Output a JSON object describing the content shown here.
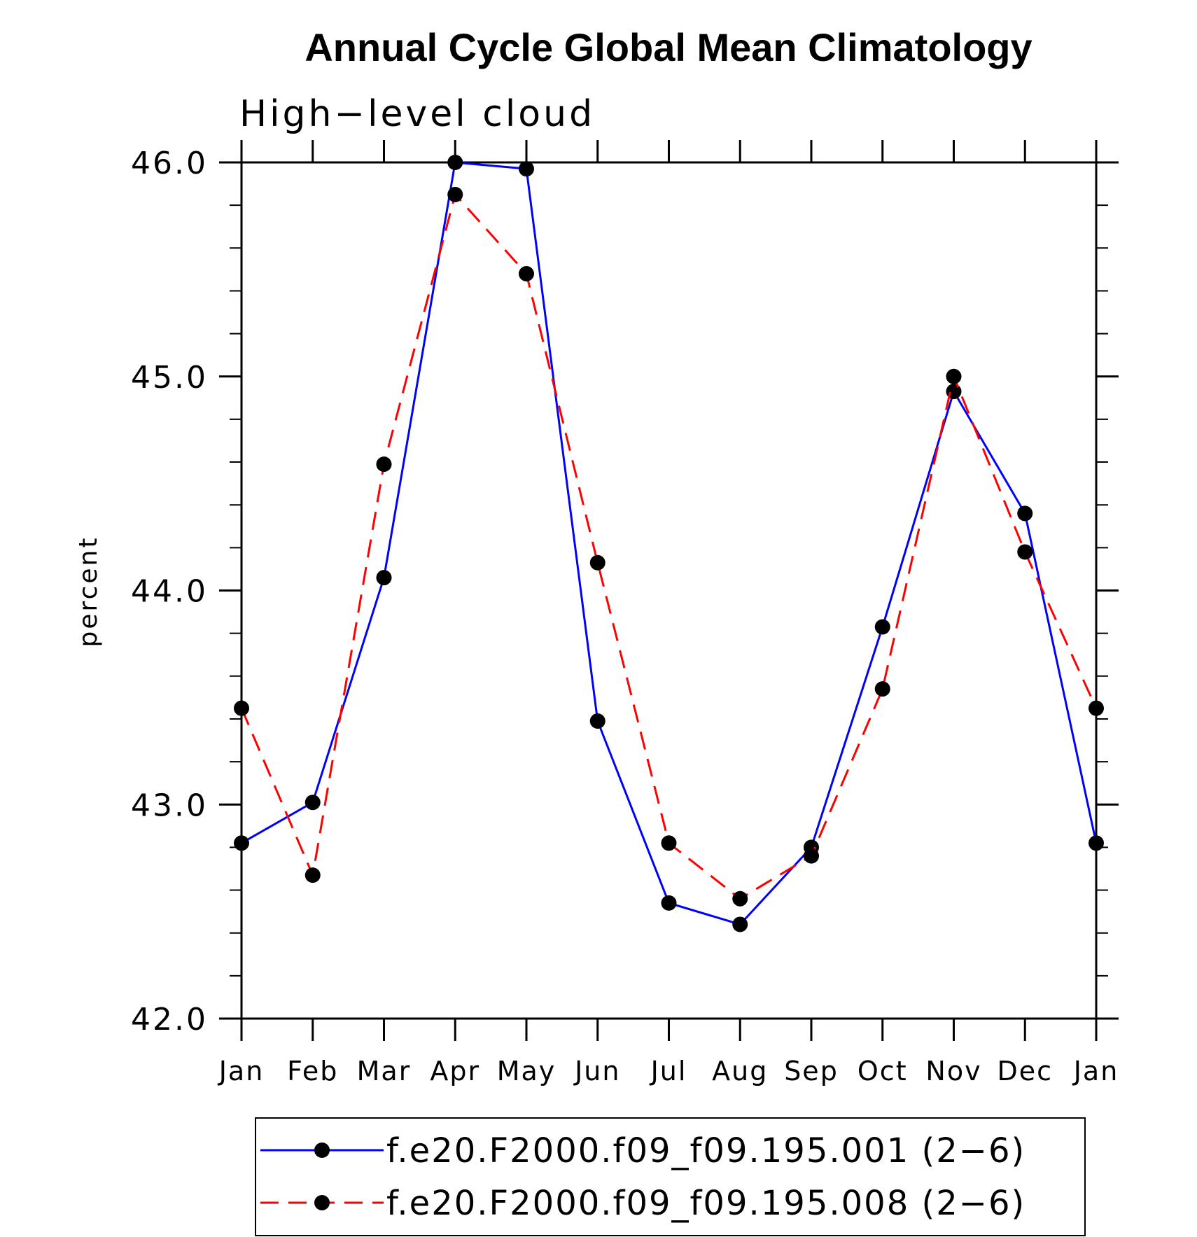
{
  "chart_data": {
    "type": "line",
    "title": "Annual Cycle Global Mean Climatology",
    "subtitle": "High−level cloud",
    "ylabel": "percent",
    "xlabel": "",
    "categories": [
      "Jan",
      "Feb",
      "Mar",
      "Apr",
      "May",
      "Jun",
      "Jul",
      "Aug",
      "Sep",
      "Oct",
      "Nov",
      "Dec",
      "Jan"
    ],
    "ylim": [
      42.0,
      46.0
    ],
    "yticks": [
      "42.0",
      "43.0",
      "44.0",
      "45.0",
      "46.0"
    ],
    "series": [
      {
        "name": "f.e20.F2000.f09_f09.195.001 (2−6)",
        "color": "#0000ff",
        "dash": "solid",
        "marker": "filled-circle",
        "values": [
          42.82,
          43.01,
          44.06,
          46.0,
          45.97,
          43.39,
          42.54,
          42.44,
          42.8,
          43.83,
          44.93,
          44.36,
          42.82
        ]
      },
      {
        "name": "f.e20.F2000.f09_f09.195.008 (2−6)",
        "color": "#ff0000",
        "dash": "dashed",
        "marker": "filled-circle",
        "values": [
          43.45,
          42.67,
          44.59,
          45.85,
          45.48,
          44.13,
          42.82,
          42.56,
          42.76,
          43.54,
          45.0,
          44.18,
          43.45
        ]
      }
    ],
    "grid": false,
    "legend_position": "bottom"
  }
}
